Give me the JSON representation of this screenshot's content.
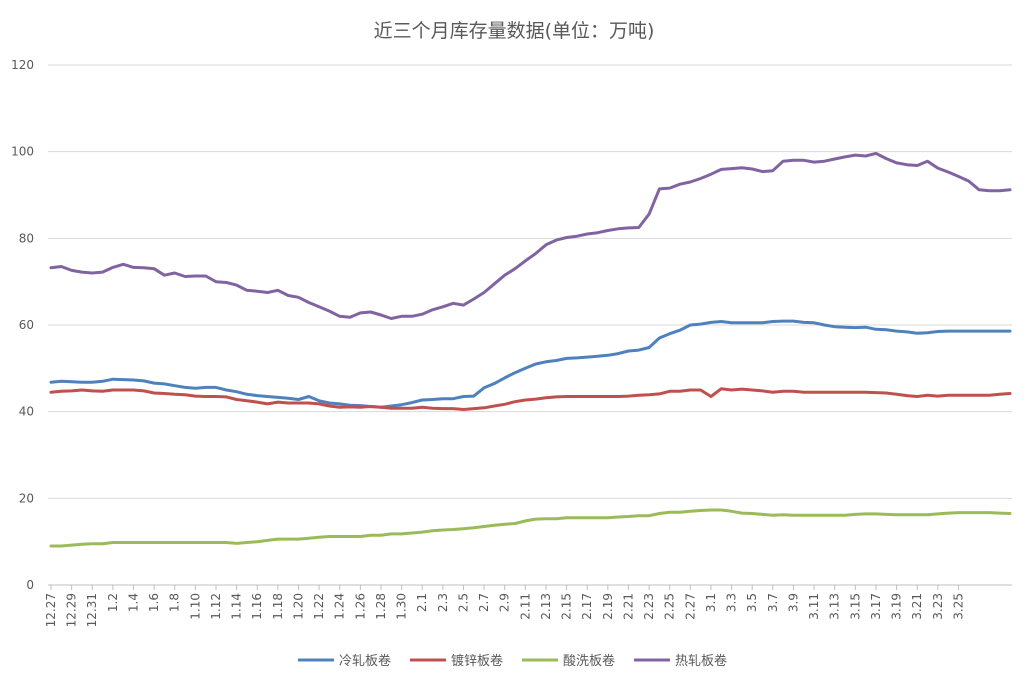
{
  "chart_data": {
    "type": "line",
    "title": "近三个月库存量数据(单位：万吨)",
    "ylim": [
      0,
      120
    ],
    "yticks": [
      0,
      20,
      40,
      60,
      80,
      100,
      120
    ],
    "grid": true,
    "legend_position": "bottom",
    "x": [
      "12.27",
      "12.28",
      "12.29",
      "12.30",
      "12.31",
      "1.1",
      "1.2",
      "1.3",
      "1.4",
      "1.5",
      "1.6",
      "1.7",
      "1.8",
      "1.9",
      "1.10",
      "1.11",
      "1.12",
      "1.13",
      "1.14",
      "1.15",
      "1.16",
      "1.17",
      "1.18",
      "1.19",
      "1.20",
      "1.21",
      "1.22",
      "1.23",
      "1.24",
      "1.25",
      "1.26",
      "1.27",
      "1.28",
      "1.29",
      "1.30",
      "1.31",
      "2.1",
      "2.2",
      "2.3",
      "2.4",
      "2.5",
      "2.6",
      "2.7",
      "2.8",
      "2.9",
      "2.10",
      "2.11",
      "2.12",
      "2.13",
      "2.14",
      "2.15",
      "2.16",
      "2.17",
      "2.18",
      "2.19",
      "2.20",
      "2.21",
      "2.22",
      "2.23",
      "2.24",
      "2.25",
      "2.26",
      "2.27",
      "2.28",
      "3.1",
      "3.2",
      "3.3",
      "3.4",
      "3.5",
      "3.6",
      "3.7",
      "3.8",
      "3.9",
      "3.10",
      "3.11",
      "3.12",
      "3.13",
      "3.14",
      "3.15",
      "3.16",
      "3.17",
      "3.18",
      "3.19",
      "3.20",
      "3.21",
      "3.22",
      "3.23",
      "3.24",
      "3.25",
      "3.26",
      "3.27",
      "3.28",
      "3.29",
      "3.30"
    ],
    "x_tick_labels": [
      "12.27",
      "12.29",
      "12.31",
      "1.2",
      "1.4",
      "1.6",
      "1.8",
      "1.10",
      "1.12",
      "1.14",
      "1.16",
      "1.18",
      "1.20",
      "1.22",
      "1.24",
      "1.26",
      "1.28",
      "1.30",
      "2.1",
      "2.3",
      "2.5",
      "2.7",
      "2.9",
      "2.11",
      "2.13",
      "2.15",
      "2.17",
      "2.19",
      "2.21",
      "2.23",
      "2.25",
      "2.27",
      "3.1",
      "3.3",
      "3.5",
      "3.7",
      "3.9",
      "3.11",
      "3.13",
      "3.15",
      "3.17",
      "3.19",
      "3.21",
      "3.23",
      "3.25"
    ],
    "series": [
      {
        "name": "冷轧板卷",
        "color": "#4f81bd",
        "values": [
          46.8,
          47.0,
          46.9,
          46.8,
          46.8,
          47.0,
          47.5,
          47.4,
          47.3,
          47.1,
          46.6,
          46.4,
          46.0,
          45.6,
          45.4,
          45.6,
          45.6,
          45.0,
          44.6,
          44.0,
          43.7,
          43.5,
          43.3,
          43.1,
          42.8,
          43.5,
          42.5,
          42.0,
          41.8,
          41.5,
          41.4,
          41.2,
          41.0,
          41.3,
          41.6,
          42.1,
          42.7,
          42.8,
          43.0,
          43.0,
          43.5,
          43.6,
          45.5,
          46.5,
          47.8,
          49.0,
          50.0,
          51.0,
          51.5,
          51.8,
          52.3,
          52.4,
          52.6,
          52.8,
          53.0,
          53.4,
          54.0,
          54.2,
          54.8,
          57.0,
          58.0,
          58.8,
          60.0,
          60.2,
          60.6,
          60.8,
          60.5,
          60.5,
          60.5,
          60.5,
          60.8,
          60.9,
          60.9,
          60.6,
          60.5,
          60.0,
          59.6,
          59.5,
          59.4,
          59.5,
          59.0,
          58.9,
          58.6,
          58.4,
          58.1,
          58.2,
          58.5,
          58.6,
          58.6,
          58.6,
          58.6,
          58.6,
          58.6,
          58.6
        ]
      },
      {
        "name": "镀锌板卷",
        "color": "#c0504d",
        "values": [
          44.5,
          44.7,
          44.8,
          45.0,
          44.8,
          44.7,
          45.0,
          45.0,
          45.0,
          44.8,
          44.3,
          44.2,
          44.0,
          43.9,
          43.6,
          43.5,
          43.5,
          43.4,
          42.8,
          42.5,
          42.2,
          41.8,
          42.2,
          42.0,
          42.0,
          42.0,
          41.8,
          41.3,
          41.0,
          41.1,
          41.0,
          41.2,
          41.0,
          40.8,
          40.8,
          40.8,
          41.0,
          40.8,
          40.7,
          40.7,
          40.5,
          40.7,
          40.9,
          41.3,
          41.7,
          42.3,
          42.7,
          42.9,
          43.2,
          43.4,
          43.5,
          43.5,
          43.5,
          43.5,
          43.5,
          43.5,
          43.6,
          43.8,
          43.9,
          44.1,
          44.7,
          44.7,
          45.0,
          45.0,
          43.5,
          45.3,
          45.0,
          45.2,
          45.0,
          44.8,
          44.5,
          44.7,
          44.7,
          44.5,
          44.5,
          44.5,
          44.5,
          44.5,
          44.5,
          44.5,
          44.4,
          44.3,
          44.0,
          43.7,
          43.5,
          43.8,
          43.6,
          43.8,
          43.8,
          43.8,
          43.8,
          43.8,
          44.0,
          44.2
        ]
      },
      {
        "name": "酸洗板卷",
        "color": "#9bbb59",
        "values": [
          9.0,
          9.0,
          9.2,
          9.4,
          9.5,
          9.5,
          9.8,
          9.8,
          9.8,
          9.8,
          9.8,
          9.8,
          9.8,
          9.8,
          9.8,
          9.8,
          9.8,
          9.8,
          9.6,
          9.8,
          10.0,
          10.3,
          10.6,
          10.6,
          10.6,
          10.8,
          11.0,
          11.2,
          11.2,
          11.2,
          11.2,
          11.5,
          11.5,
          11.8,
          11.8,
          12.0,
          12.2,
          12.5,
          12.7,
          12.8,
          13.0,
          13.2,
          13.5,
          13.8,
          14.0,
          14.2,
          14.8,
          15.2,
          15.3,
          15.3,
          15.5,
          15.5,
          15.5,
          15.5,
          15.5,
          15.7,
          15.8,
          16.0,
          16.0,
          16.5,
          16.8,
          16.8,
          17.0,
          17.2,
          17.3,
          17.3,
          17.0,
          16.6,
          16.5,
          16.3,
          16.1,
          16.2,
          16.1,
          16.1,
          16.1,
          16.1,
          16.1,
          16.1,
          16.3,
          16.4,
          16.4,
          16.3,
          16.2,
          16.2,
          16.2,
          16.2,
          16.4,
          16.6,
          16.7,
          16.7,
          16.7,
          16.7,
          16.6,
          16.5
        ]
      },
      {
        "name": "热轧板卷",
        "color": "#8064a2",
        "values": [
          73.2,
          73.5,
          72.6,
          72.2,
          72.0,
          72.2,
          73.3,
          74.0,
          73.3,
          73.2,
          73.0,
          71.5,
          72.0,
          71.2,
          71.3,
          71.3,
          70.0,
          69.8,
          69.2,
          68.0,
          67.8,
          67.5,
          68.0,
          66.8,
          66.4,
          65.2,
          64.2,
          63.2,
          62.0,
          61.8,
          62.8,
          63.0,
          62.3,
          61.5,
          62.0,
          62.0,
          62.5,
          63.5,
          64.2,
          65.0,
          64.6,
          66.0,
          67.5,
          69.5,
          71.5,
          73.0,
          74.8,
          76.5,
          78.5,
          79.6,
          80.2,
          80.5,
          81.0,
          81.3,
          81.8,
          82.2,
          82.4,
          82.5,
          85.6,
          91.4,
          91.6,
          92.5,
          93.0,
          93.8,
          94.8,
          95.9,
          96.1,
          96.3,
          96.0,
          95.4,
          95.6,
          97.8,
          98.0,
          98.0,
          97.6,
          97.8,
          98.3,
          98.8,
          99.2,
          99.0,
          99.6,
          98.4,
          97.4,
          97.0,
          96.8,
          97.8,
          96.2,
          95.3,
          94.3,
          93.2,
          91.2,
          91.0,
          91.0,
          91.2
        ]
      }
    ]
  }
}
